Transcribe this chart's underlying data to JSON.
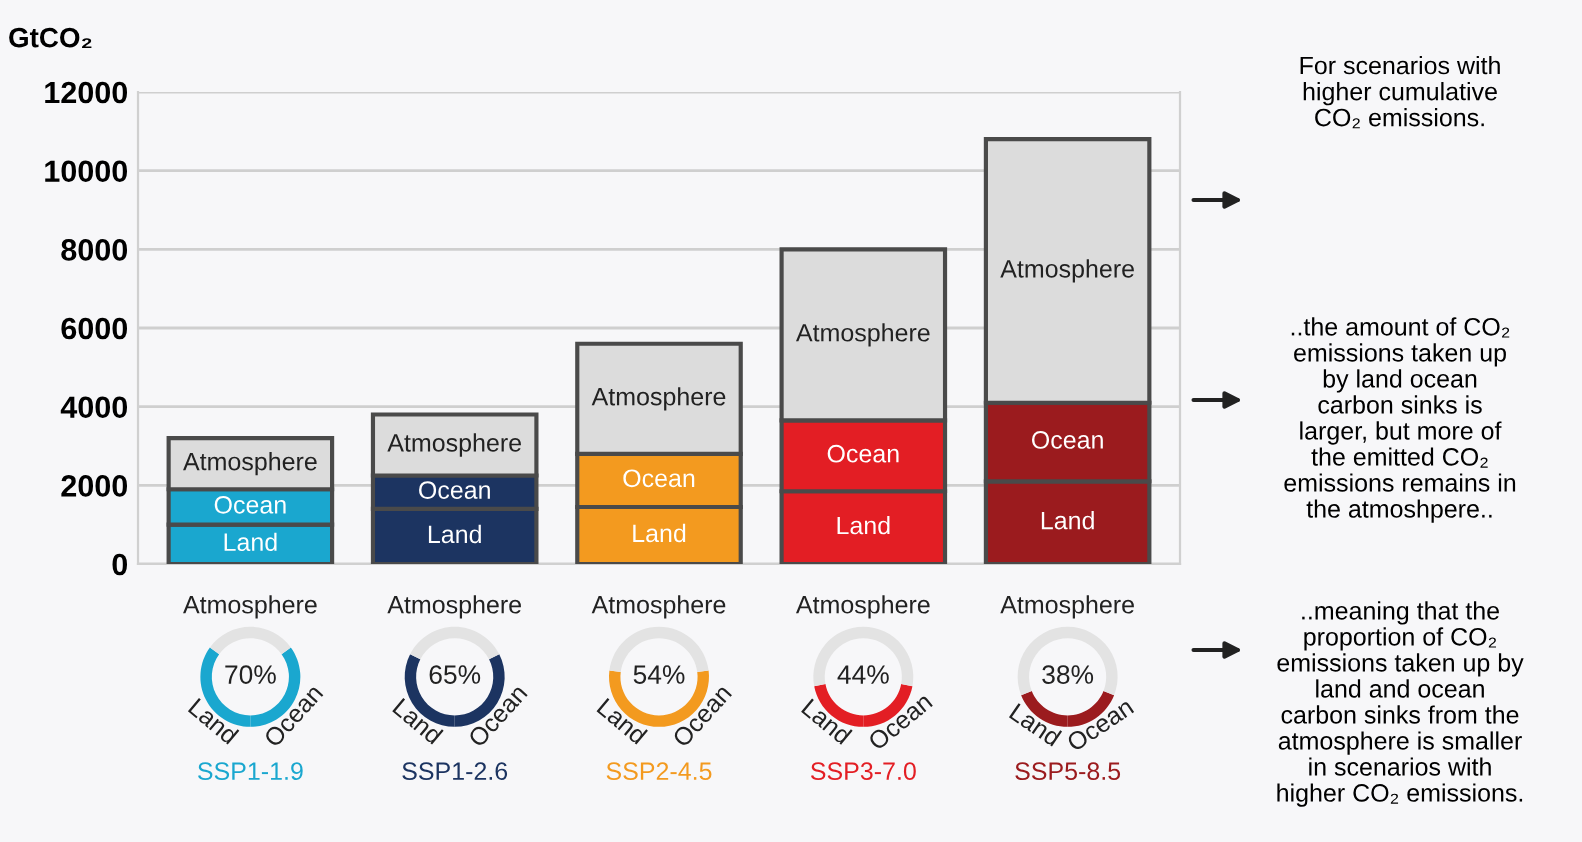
{
  "chart_data": [
    {
      "type": "bar",
      "stacked": true,
      "ylabel": "GtCO₂",
      "categories": [
        null,
        null,
        null,
        null,
        null
      ],
      "ylim": [
        0,
        12000
      ],
      "yticks": [
        0,
        2000,
        4000,
        6000,
        8000,
        10000,
        12000
      ],
      "grid": "y",
      "legend": false,
      "series": [
        {
          "name": "Land",
          "values": [
            1000,
            1400,
            1450,
            1850,
            2100
          ],
          "colors": [
            "#1aa7cf",
            "#1c3461",
            "#f39a1f",
            "#e31e24",
            "#9b1b1e"
          ]
        },
        {
          "name": "Ocean",
          "values": [
            900,
            850,
            1350,
            1800,
            2000
          ],
          "colors": [
            "#1aa7cf",
            "#1c3461",
            "#f39a1f",
            "#e31e24",
            "#9b1b1e"
          ]
        },
        {
          "name": "Atmosphere",
          "values": [
            1300,
            1550,
            2800,
            4350,
            6700
          ],
          "colors": [
            "#dcdcdc",
            "#dcdcdc",
            "#dcdcdc",
            "#dcdcdc",
            "#dcdcdc"
          ]
        }
      ],
      "annotations": [
        "For scenarios with\nhigher cumulative\nCO₂ emissions.",
        "..the amount of CO₂\nemissions taken up\nby land ocean\ncarbon sinks is\nlarger, but more of\nthe emitted CO₂\nemissions remains in\nthe atmoshpere..",
        "..meaning that the\nproportion of CO₂\nemissions taken up by\nland and ocean\ncarbon sinks from the\natmosphere is smaller\nin scenarios with\nhigher CO₂ emissions."
      ]
    },
    {
      "type": "donut",
      "title": "SSP1-1.9",
      "categories": [
        "Land",
        "Ocean",
        "Atmosphere"
      ],
      "values": [
        35,
        35,
        30
      ],
      "colors": [
        "#1aa7cf",
        "#1aa7cf",
        "#e3e3e3"
      ],
      "annotations": [
        "70%"
      ]
    },
    {
      "type": "donut",
      "title": "SSP1-2.6",
      "categories": [
        "Land",
        "Ocean",
        "Atmosphere"
      ],
      "values": [
        32.5,
        32.5,
        35
      ],
      "colors": [
        "#1c3461",
        "#1c3461",
        "#e3e3e3"
      ],
      "annotations": [
        "65%"
      ]
    },
    {
      "type": "donut",
      "title": "SSP2-4.5",
      "categories": [
        "Land",
        "Ocean",
        "Atmosphere"
      ],
      "values": [
        27,
        27,
        46
      ],
      "colors": [
        "#f39a1f",
        "#f39a1f",
        "#e3e3e3"
      ],
      "annotations": [
        "54%"
      ]
    },
    {
      "type": "donut",
      "title": "SSP3-7.0",
      "categories": [
        "Land",
        "Ocean",
        "Atmosphere"
      ],
      "values": [
        22,
        22,
        56
      ],
      "colors": [
        "#e31e24",
        "#e31e24",
        "#e3e3e3"
      ],
      "annotations": [
        "44%"
      ]
    },
    {
      "type": "donut",
      "title": "SSP5-8.5",
      "categories": [
        "Land",
        "Ocean",
        "Atmosphere"
      ],
      "values": [
        19,
        19,
        62
      ],
      "colors": [
        "#9b1b1e",
        "#9b1b1e",
        "#e3e3e3"
      ],
      "annotations": [
        "38%"
      ]
    }
  ]
}
